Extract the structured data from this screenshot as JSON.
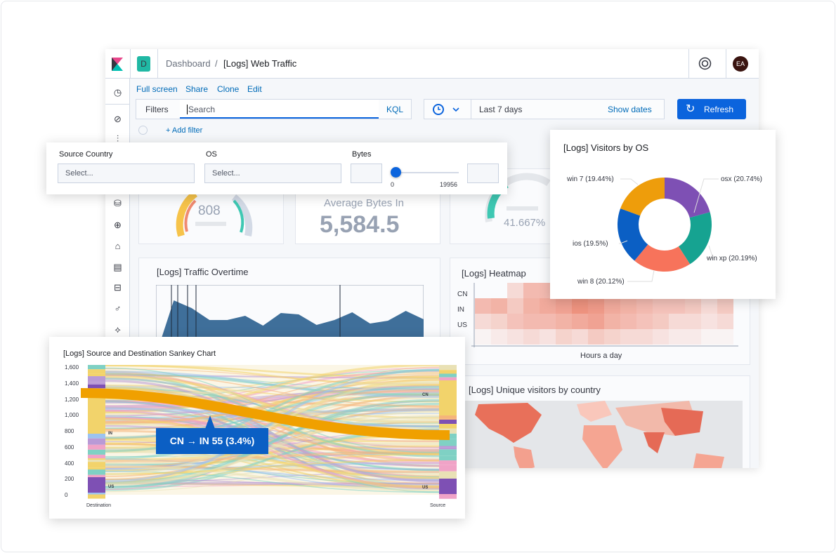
{
  "header": {
    "logo": "kibana-logo",
    "space_badge": "D",
    "breadcrumb_root": "Dashboard",
    "breadcrumb_sep": "/",
    "breadcrumb_current": "[Logs] Web Traffic",
    "avatar": "EA",
    "help_icon": "lifebuoy-icon"
  },
  "sidebar": {
    "icons": [
      "clock-icon",
      "compass-icon",
      "chart-icon",
      "maps-icon",
      "graph-icon",
      "canvas-icon",
      "logs-icon",
      "metrics-icon",
      "uptime-icon",
      "apm-icon"
    ]
  },
  "toolbar": {
    "links": [
      "Full screen",
      "Share",
      "Clone",
      "Edit"
    ],
    "filters_label": "Filters",
    "search_placeholder": "Search",
    "kql": "KQL",
    "time_range": "Last 7 days",
    "show_dates": "Show dates",
    "refresh": "Refresh",
    "add_filter": "+ Add filter"
  },
  "controls": {
    "source_country_label": "Source Country",
    "os_label": "OS",
    "bytes_label": "Bytes",
    "select_placeholder": "Select...",
    "range_min": "0",
    "range_max": "19956",
    "slider_value": 0
  },
  "metrics": {
    "gauge1": "808",
    "avg_label": "Average Bytes In",
    "avg_value": "5,584.5",
    "gauge3": "41.667%"
  },
  "traffic": {
    "title": "[Logs] Traffic Overtime"
  },
  "heatmap": {
    "title": "[Logs] Heatmap",
    "rows": [
      "CN",
      "IN",
      "US"
    ],
    "xlabel": "Hours a day"
  },
  "map": {
    "title": "[Logs] Unique visitors by country"
  },
  "colors": {
    "accent": "#0b64dd",
    "kibana_teal": "#00bfb3",
    "orange_flow": "#f0a000"
  },
  "chart_data": [
    {
      "type": "pie",
      "title": "[Logs] Visitors by OS",
      "donut": true,
      "categories": [
        "osx",
        "win xp",
        "win 8",
        "ios",
        "win 7"
      ],
      "values": [
        20.74,
        20.19,
        20.12,
        19.5,
        19.44
      ],
      "labels": [
        "osx (20.74%)",
        "win xp (20.19%)",
        "win 8 (20.12%)",
        "ios (19.5%)",
        "win 7 (19.44%)"
      ],
      "colors": [
        "#7e50b4",
        "#16a391",
        "#f7735b",
        "#0b5fc4",
        "#ee9d0b"
      ]
    },
    {
      "type": "area",
      "title": "[Logs] Traffic Overtime",
      "series": [
        {
          "values": [
            10,
            88,
            77,
            60,
            60,
            66,
            52,
            70,
            68,
            53,
            60,
            71,
            55,
            59,
            73,
            61
          ],
          "color": "#3f6f9a"
        },
        {
          "values": [
            5,
            18,
            20,
            11,
            23,
            13,
            22,
            13,
            25,
            14,
            22,
            10,
            10,
            14,
            17,
            24
          ],
          "color": "#3bb9a6"
        },
        {
          "values": [
            4,
            12,
            14,
            9,
            10,
            14,
            8,
            18,
            10,
            17,
            8,
            12,
            15,
            8,
            12,
            16
          ],
          "color": "#3a7dc4"
        }
      ]
    },
    {
      "type": "heatmap",
      "title": "[Logs] Heatmap",
      "rows": [
        "CN",
        "IN",
        "US",
        ""
      ],
      "xlabel": "Hours a day",
      "values": [
        [
          0,
          0,
          0.2,
          0.4,
          0.4,
          0.55,
          0.6,
          0.5,
          0.5,
          0.45,
          0.4,
          0.3,
          0.3,
          0.25,
          0.1,
          0.15
        ],
        [
          0.4,
          0.45,
          0.3,
          0.45,
          0.5,
          0.55,
          0.65,
          0.6,
          0.5,
          0.45,
          0.4,
          0.35,
          0.35,
          0.3,
          0.2,
          0.3
        ],
        [
          0.2,
          0.25,
          0.35,
          0.4,
          0.4,
          0.45,
          0.5,
          0.55,
          0.45,
          0.4,
          0.35,
          0.3,
          0.2,
          0.2,
          0.15,
          0.2
        ],
        [
          0.05,
          0.1,
          0.15,
          0.2,
          0.15,
          0.25,
          0.2,
          0.3,
          0.25,
          0.2,
          0.2,
          0.15,
          0.1,
          0.1,
          0.05,
          0.05
        ]
      ]
    },
    {
      "type": "sankey",
      "title": "[Logs] Source and Destination Sankey Chart",
      "yticks": [
        "1,600",
        "1,400",
        "1,200",
        "1,000",
        "800",
        "600",
        "400",
        "200",
        "0"
      ],
      "ylim": [
        0,
        1600
      ],
      "xlabel_left": "Destination",
      "xlabel_right": "Source",
      "nodes_left": [
        "IN",
        "US"
      ],
      "nodes_right": [
        "CN",
        "US"
      ],
      "highlight": {
        "from": "CN",
        "to": "IN",
        "value": 55,
        "percent": 3.4,
        "tooltip": "CN → IN 55 (3.4%)"
      }
    }
  ]
}
